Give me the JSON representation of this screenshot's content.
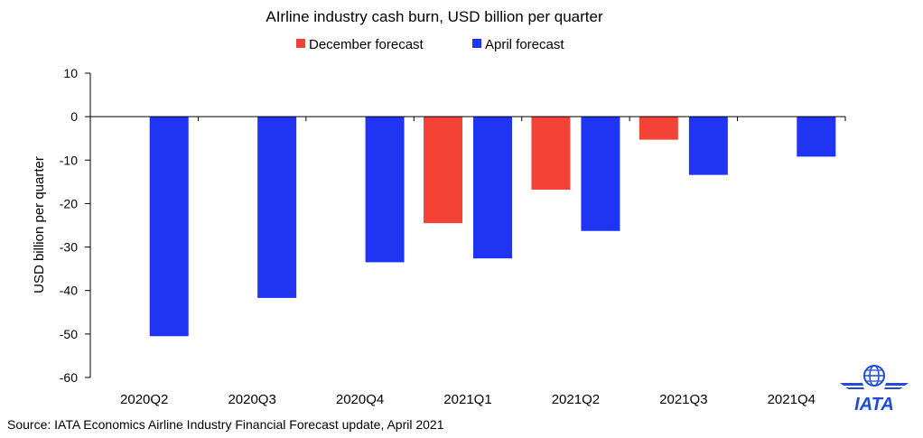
{
  "chart_data": {
    "type": "bar",
    "title": "AIrline industry cash burn, USD billion per quarter",
    "ylabel": "USD billion per quarter",
    "xlabel": "",
    "categories": [
      "2020Q2",
      "2020Q3",
      "2020Q4",
      "2021Q1",
      "2021Q2",
      "2021Q3",
      "2021Q4"
    ],
    "series": [
      {
        "name": "December forecast",
        "color": "#f44336",
        "values": [
          0,
          0,
          0,
          -24.5,
          -16.8,
          -5.3,
          0
        ]
      },
      {
        "name": "April forecast",
        "color": "#1f35f2",
        "values": [
          -50.5,
          -41.7,
          -33.5,
          -32.6,
          -26.3,
          -13.4,
          -9.2
        ]
      }
    ],
    "ylim": [
      -60,
      10
    ],
    "yticks": [
      10,
      0,
      -10,
      -20,
      -30,
      -40,
      -50,
      -60
    ],
    "legend_position": "top-center",
    "grid": false
  },
  "source": "Source: IATA Economics Airline Industry Financial Forecast update, April 2021",
  "logo": {
    "text": "IATA",
    "color": "#1f4bd8"
  }
}
